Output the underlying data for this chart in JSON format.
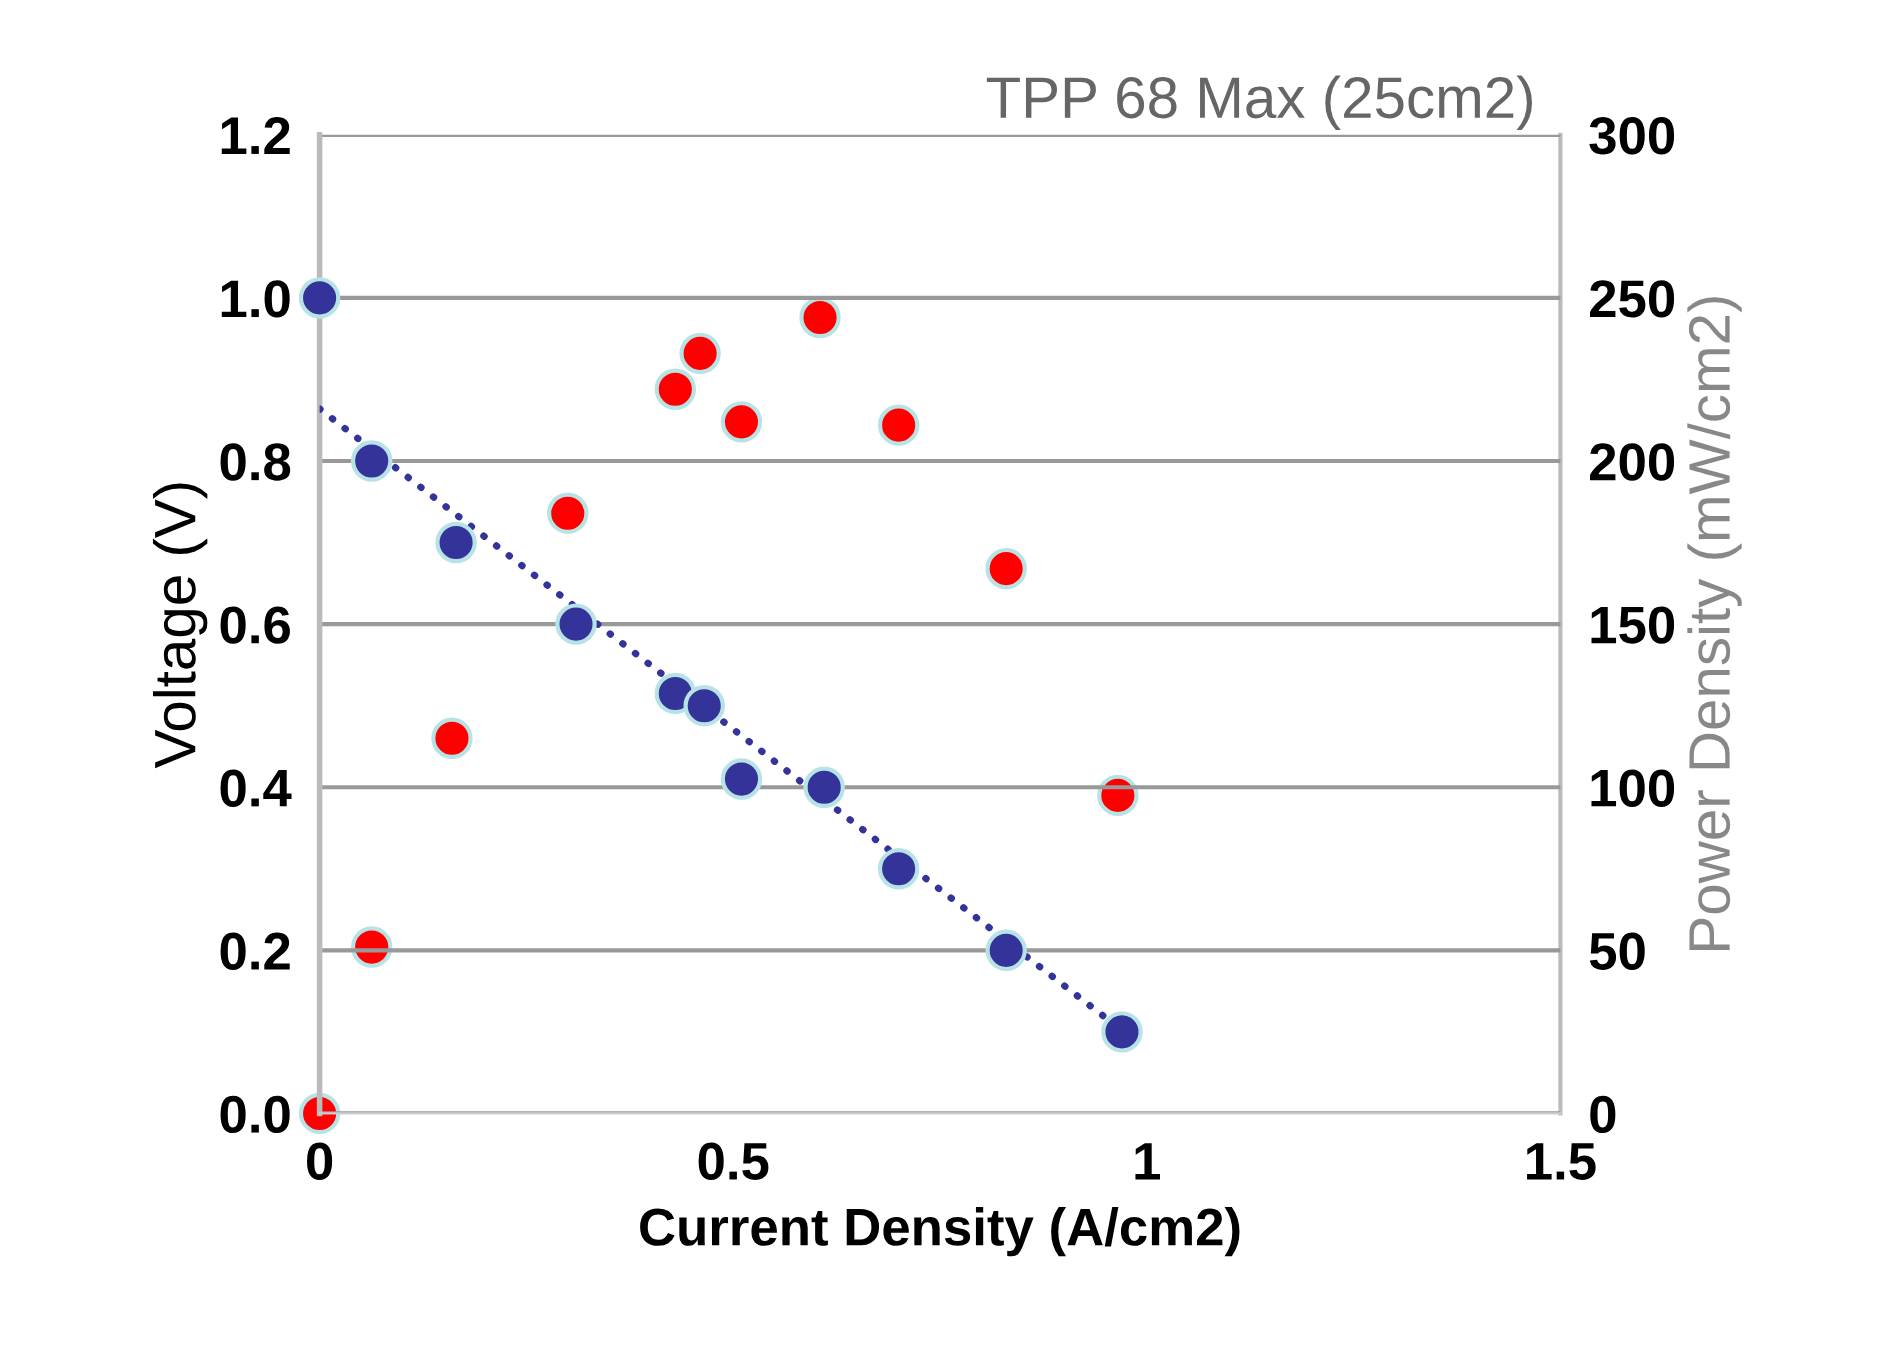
{
  "chart_data": {
    "type": "scatter",
    "title": "TPP 68 Max (25cm2)",
    "xlabel": "Current Density (A/cm2)",
    "ylabel": "Voltage (V)",
    "y2label": "Power Density (mW/cm2)",
    "xlim": [
      0,
      1.5
    ],
    "xticks": [
      0,
      0.5,
      1,
      1.5
    ],
    "ylim": [
      0,
      1.2
    ],
    "yticks": [
      {
        "value": 0,
        "label": "0.0"
      },
      {
        "value": 0.2,
        "label": "0.2"
      },
      {
        "value": 0.4,
        "label": "0.4"
      },
      {
        "value": 0.6,
        "label": "0.6"
      },
      {
        "value": 0.8,
        "label": "0.8"
      },
      {
        "value": 1.0,
        "label": "1.0"
      },
      {
        "value": 1.2,
        "label": "1.2"
      }
    ],
    "y2lim": [
      0,
      300
    ],
    "y2ticks": [
      0,
      50,
      100,
      150,
      200,
      250,
      300
    ],
    "grid": "y",
    "legend": false,
    "marker": "circle",
    "series": [
      {
        "type": "line",
        "color": "#333399",
        "line_style": "dotted",
        "marker": "none",
        "x": [
          0,
          0.985
        ],
        "values": [
          0.864,
          0.09
        ]
      },
      {
        "color": "#333399",
        "x": [
          0,
          0.063,
          0.165,
          0.31,
          0.43,
          0.465,
          0.51,
          0.61,
          0.7,
          0.83,
          0.97
        ],
        "values": [
          1.0,
          0.8,
          0.7,
          0.6,
          0.515,
          0.5,
          0.41,
          0.4,
          0.3,
          0.2,
          0.1
        ]
      },
      {
        "color": "#ff0000",
        "axis": "y2",
        "x": [
          0,
          0.063,
          0.16,
          0.3,
          0.43,
          0.46,
          0.51,
          0.605,
          0.7,
          0.83,
          0.965
        ],
        "values": [
          0,
          51,
          115,
          184,
          222,
          233,
          212,
          244,
          211,
          167,
          97.5
        ]
      }
    ]
  }
}
